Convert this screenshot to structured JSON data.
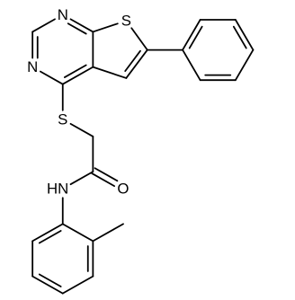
{
  "labels": {
    "n1": "N",
    "n3": "N",
    "s_ring": "S",
    "s_link": "S",
    "nh": "HN",
    "o": "O"
  }
}
